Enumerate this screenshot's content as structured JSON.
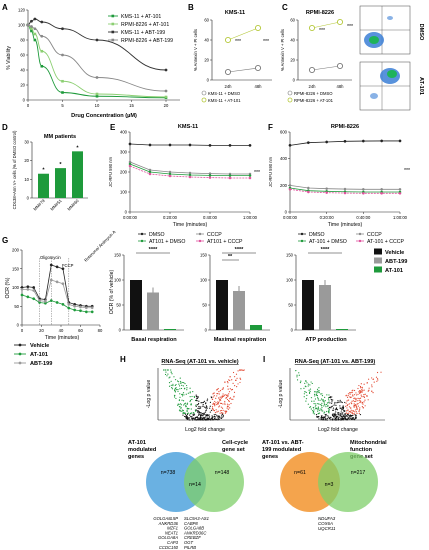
{
  "panels": {
    "A": "A",
    "B": "B",
    "C": "C",
    "D": "D",
    "E": "E",
    "F": "F",
    "G": "G",
    "H": "H",
    "I": "I"
  },
  "colors": {
    "green": "#1e9a3b",
    "lightgreen": "#8ccf72",
    "olive": "#b5c83a",
    "red": "#e24a33",
    "blue": "#5aa8df",
    "venn_green": "#7fcf6a",
    "venn_orange": "#f39a3a",
    "magenta": "#e0509c",
    "gray": "#9a9a9a"
  },
  "panelA": {
    "ylabel": "% Viability",
    "xlabel": "Drug Concentration (µM)",
    "xticks": [
      "0",
      "5",
      "10",
      "15",
      "20"
    ],
    "yticks": [
      "0",
      "20",
      "40",
      "60",
      "80",
      "100",
      "120"
    ],
    "legend": [
      "KMS-11 + AT-101",
      "RPMI-8226 + AT-101",
      "KMS-11 + ABT-199",
      "RPMI-8226 + ABT-199"
    ]
  },
  "panelB": {
    "title": "KMS-11",
    "ylabel": "% Annexin V + PI cells",
    "xticks": [
      "24h",
      "48h"
    ],
    "yticks": [
      "0",
      "20",
      "40",
      "60"
    ],
    "sig": [
      "***",
      "***"
    ],
    "legend": [
      "KMS-11 + DMSO",
      "KMS-11 + AT-101"
    ]
  },
  "panelC": {
    "title": "RPMI-8226",
    "ylabel": "% Annexin V + PI cells",
    "xticks": [
      "24h",
      "48h"
    ],
    "yticks": [
      "0",
      "20",
      "40",
      "60"
    ],
    "sig": [
      "***",
      "***"
    ],
    "legend": [
      "RPMI-8226 + DMSO",
      "RPMI-8226 + AT-101"
    ],
    "flow_labels": [
      "DMSO",
      "AT-101"
    ]
  },
  "panelD": {
    "title": "MM patients",
    "ylabel": "CD138+Ann V+ cells (% of DMSO control)",
    "categories": [
      "MM#79",
      "MM#51",
      "MM#60"
    ],
    "yticks": [
      "0",
      "10",
      "20",
      "30"
    ],
    "sig": [
      "*",
      "*",
      "*"
    ]
  },
  "panelE": {
    "title": "KMS-11",
    "ylabel": "JC-RFU 590 nm",
    "xlabel": "Time (minutes)",
    "xticks": [
      "0:00:00",
      "0:20:00",
      "0:40:00",
      "1:00:00"
    ],
    "yticks": [
      "0",
      "100",
      "200",
      "300",
      "400"
    ],
    "sig": "***",
    "legend": [
      "DMSO",
      "CCCP",
      "AT101 + DMSO",
      "AT101 + CCCP"
    ]
  },
  "panelF": {
    "title": "RPMI-8226",
    "ylabel": "JC-RFU 590 nm",
    "xlabel": "Time (minutes)",
    "xticks": [
      "0:00:00",
      "0:20:00",
      "0:40:00",
      "1:00:00"
    ],
    "yticks": [
      "0",
      "200",
      "400",
      "600"
    ],
    "sig": "***",
    "legend": [
      "DMSO",
      "CCCP",
      "AT-101 + DMSO",
      "AT-101 + CCCP"
    ]
  },
  "panelG": {
    "ylabel": "OCR (%)",
    "xlabel": "Time (minutes)",
    "xticks": [
      "0",
      "20",
      "40",
      "60",
      "80"
    ],
    "yticks": [
      "0",
      "50",
      "100",
      "150",
      "200"
    ],
    "injections": [
      "Oligomycin",
      "FCCP",
      "Rotenone/ Antimycin A"
    ],
    "legend": [
      "Vehicle",
      "AT-101",
      "ABT-199"
    ]
  },
  "bars": {
    "ylabel": "OCR (% of vehicle)",
    "yticks": [
      "0",
      "50",
      "100",
      "150"
    ],
    "groups": [
      {
        "label": "Basal respiration",
        "sig": "****"
      },
      {
        "label": "Maximal respiration",
        "sig": "****",
        "sig2": "**"
      },
      {
        "label": "ATP production",
        "sig": "****"
      }
    ],
    "legend": [
      "Vehicle",
      "ABT-199",
      "AT-101"
    ]
  },
  "panelH": {
    "title": "RNA-Seq (AT-101 vs. vehicle)",
    "ylabel": "-Log p value",
    "xlabel": "Log2 fold change"
  },
  "panelI": {
    "title": "RNA-Seq (AT-101 vs. ABT-199)",
    "ylabel": "-Log p value",
    "xlabel": "Log2 fold change"
  },
  "vennH": {
    "left_label": "AT-101 modulated genes",
    "right_label": "Cell-cycle gene set",
    "left_n": "n=738",
    "right_n": "n=148",
    "overlap": "n=14",
    "genes_left": [
      "GOLGA8L5P",
      "ANKRD36",
      "MZF1",
      "NEAT1",
      "GOLGA8A",
      "CAP3",
      "CCDC150"
    ],
    "genes_right": [
      "SLC9A3-AS1",
      "CABP8",
      "GOLGA8B",
      "ANKRD36C",
      "CREBZF",
      "OGT",
      "PILRB"
    ]
  },
  "vennI": {
    "left_label": "AT-101 vs. ABT-199 modulated genes",
    "right_label": "Mitochondrial function gene set",
    "left_n": "n=61",
    "right_n": "n=217",
    "overlap": "n=3",
    "genes": [
      "NDUFA3",
      "COX6A",
      "UQCR11"
    ]
  },
  "chart_data": [
    {
      "type": "line",
      "panel": "A",
      "title": "",
      "xlabel": "Drug Concentration (µM)",
      "ylabel": "% Viability",
      "xlim": [
        0,
        22
      ],
      "ylim": [
        0,
        120
      ],
      "x": [
        0,
        0.5,
        1,
        2,
        5,
        10,
        20
      ],
      "series": [
        {
          "name": "KMS-11 + AT-101",
          "values": [
            100,
            92,
            80,
            45,
            10,
            5,
            3
          ]
        },
        {
          "name": "RPMI-8226 + AT-101",
          "values": [
            100,
            95,
            88,
            65,
            25,
            8,
            4
          ]
        },
        {
          "name": "KMS-11 + ABT-199",
          "values": [
            100,
            105,
            108,
            104,
            95,
            80,
            40
          ]
        },
        {
          "name": "RPMI-8226 + ABT-199",
          "values": [
            100,
            98,
            95,
            85,
            60,
            30,
            12
          ]
        }
      ]
    },
    {
      "type": "line",
      "panel": "B",
      "title": "KMS-11",
      "categories": [
        "24h",
        "48h"
      ],
      "ylim": [
        0,
        60
      ],
      "series": [
        {
          "name": "KMS-11 + DMSO",
          "values": [
            8,
            12
          ]
        },
        {
          "name": "KMS-11 + AT-101",
          "values": [
            40,
            52
          ]
        }
      ]
    },
    {
      "type": "line",
      "panel": "C",
      "title": "RPMI-8226",
      "categories": [
        "24h",
        "48h"
      ],
      "ylim": [
        0,
        60
      ],
      "series": [
        {
          "name": "RPMI-8226 + DMSO",
          "values": [
            10,
            14
          ]
        },
        {
          "name": "RPMI-8226 + AT-101",
          "values": [
            52,
            58
          ]
        }
      ]
    },
    {
      "type": "bar",
      "panel": "D",
      "title": "MM patients",
      "categories": [
        "MM#79",
        "MM#51",
        "MM#60"
      ],
      "values": [
        13,
        16,
        25
      ],
      "ylim": [
        0,
        30
      ]
    },
    {
      "type": "line",
      "panel": "E",
      "title": "KMS-11",
      "xlabel": "Time (minutes)",
      "ylabel": "JC-RFU 590 nm",
      "ylim": [
        0,
        400
      ],
      "x": [
        0,
        10,
        20,
        30,
        40,
        50,
        60
      ],
      "series": [
        {
          "name": "DMSO",
          "values": [
            340,
            335,
            335,
            335,
            333,
            333,
            333
          ]
        },
        {
          "name": "CCCP",
          "values": [
            250,
            210,
            200,
            195,
            192,
            190,
            190
          ]
        },
        {
          "name": "AT101 + DMSO",
          "values": [
            240,
            200,
            190,
            185,
            183,
            182,
            182
          ]
        },
        {
          "name": "AT101 + CCCP",
          "values": [
            230,
            190,
            180,
            175,
            172,
            170,
            170
          ]
        }
      ]
    },
    {
      "type": "line",
      "panel": "F",
      "title": "RPMI-8226",
      "xlabel": "Time (minutes)",
      "ylabel": "JC-RFU 590 nm",
      "ylim": [
        0,
        600
      ],
      "x": [
        0,
        10,
        20,
        30,
        40,
        50,
        60
      ],
      "series": [
        {
          "name": "DMSO",
          "values": [
            500,
            520,
            525,
            530,
            532,
            533,
            533
          ]
        },
        {
          "name": "CCCP",
          "values": [
            200,
            180,
            175,
            172,
            170,
            170,
            170
          ]
        },
        {
          "name": "AT-101 + DMSO",
          "values": [
            180,
            160,
            155,
            152,
            150,
            150,
            150
          ]
        },
        {
          "name": "AT-101 + CCCP",
          "values": [
            170,
            150,
            145,
            142,
            140,
            140,
            140
          ]
        }
      ]
    },
    {
      "type": "line",
      "panel": "G",
      "xlabel": "Time (minutes)",
      "ylabel": "OCR (%)",
      "ylim": [
        0,
        200
      ],
      "x": [
        0,
        6,
        12,
        18,
        24,
        30,
        36,
        42,
        48,
        54,
        60,
        66,
        72
      ],
      "series": [
        {
          "name": "Vehicle",
          "values": [
            100,
            102,
            100,
            70,
            68,
            160,
            155,
            150,
            60,
            55,
            52,
            50,
            50
          ]
        },
        {
          "name": "AT-101",
          "values": [
            80,
            75,
            70,
            60,
            58,
            65,
            60,
            55,
            45,
            40,
            38,
            35,
            35
          ]
        },
        {
          "name": "ABT-199",
          "values": [
            95,
            95,
            92,
            65,
            63,
            120,
            115,
            110,
            55,
            50,
            48,
            46,
            46
          ]
        }
      ]
    },
    {
      "type": "bar",
      "panel": "G-bars",
      "ylabel": "OCR (% of vehicle)",
      "ylim": [
        0,
        150
      ],
      "categories": [
        "Basal respiration",
        "Maximal respiration",
        "ATP production"
      ],
      "series": [
        {
          "name": "Vehicle",
          "values": [
            100,
            100,
            100
          ]
        },
        {
          "name": "ABT-199",
          "values": [
            75,
            78,
            90
          ]
        },
        {
          "name": "AT-101",
          "values": [
            2,
            10,
            2
          ]
        }
      ]
    }
  ]
}
